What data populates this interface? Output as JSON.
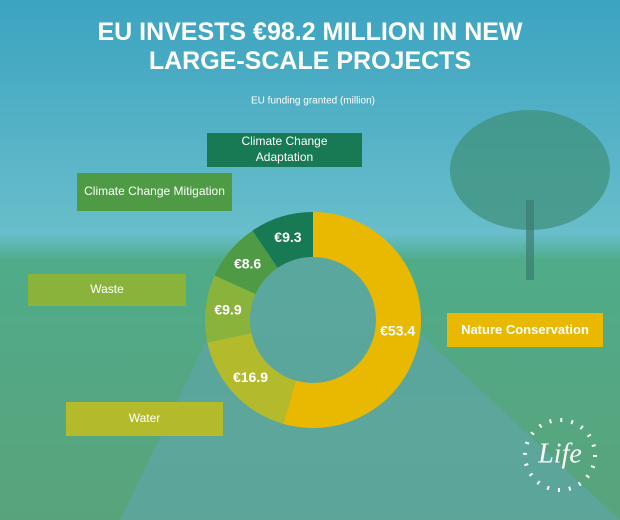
{
  "chart_data": {
    "type": "pie",
    "donut": true,
    "title": "EU INVESTS €98.2 MILLION IN NEW LARGE-SCALE PROJECTS",
    "subtitle": "EU funding granted (million)",
    "categories": [
      "Nature Conservation",
      "Water",
      "Waste",
      "Climate Change Mitigation",
      "Climate Change Adaptation"
    ],
    "values": [
      53.4,
      16.9,
      9.9,
      8.6,
      9.3
    ],
    "value_labels": [
      "€53.4",
      "€16.9",
      "€9.9",
      "€8.6",
      "€9.3"
    ],
    "colors": [
      "#e8b900",
      "#b3bb2c",
      "#8ab33c",
      "#4f9b45",
      "#187a55"
    ]
  },
  "logo": "Life"
}
